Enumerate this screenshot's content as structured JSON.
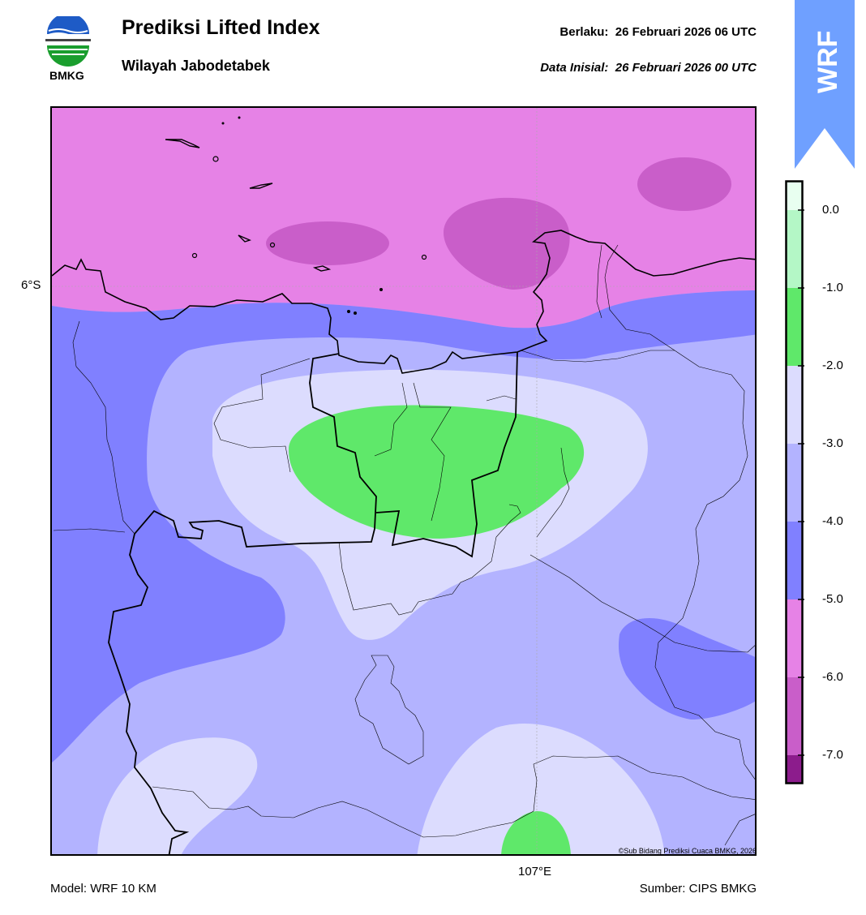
{
  "header": {
    "title": "Prediksi Lifted Index",
    "subtitle": "Wilayah Jabodetabek",
    "valid_label": "Berlaku:  26 Februari 2026 06 UTC",
    "init_label": "Data Inisial:  26 Februari 2026 00 UTC",
    "logo_text": "BMKG"
  },
  "map": {
    "lat_label": "6°S",
    "lon_label": "107°E",
    "copyright": "©Sub Bidang Prediksi Cuaca BMKG, 2026"
  },
  "ribbon": {
    "text": "WRF",
    "color": "#6fa0ff"
  },
  "colorbar": {
    "ticks": [
      "0.0",
      "-1.0",
      "-2.0",
      "-3.0",
      "-4.0",
      "-5.0",
      "-6.0",
      "-7.0"
    ],
    "colors": {
      "gt0": "#e8fff0",
      "0_to_m1": "#b4f7c6",
      "m1_to_m2": "#5fe86a",
      "m2_to_m3": "#dcdcfe",
      "m3_to_m4": "#b3b3ff",
      "m4_to_m5": "#8080ff",
      "m5_to_m6": "#e682e6",
      "m6_to_m7": "#c95ec9",
      "lt_m7": "#8c1c8c"
    }
  },
  "footer": {
    "model": "Model: WRF 10 KM",
    "source": "Sumber: CIPS BMKG"
  }
}
